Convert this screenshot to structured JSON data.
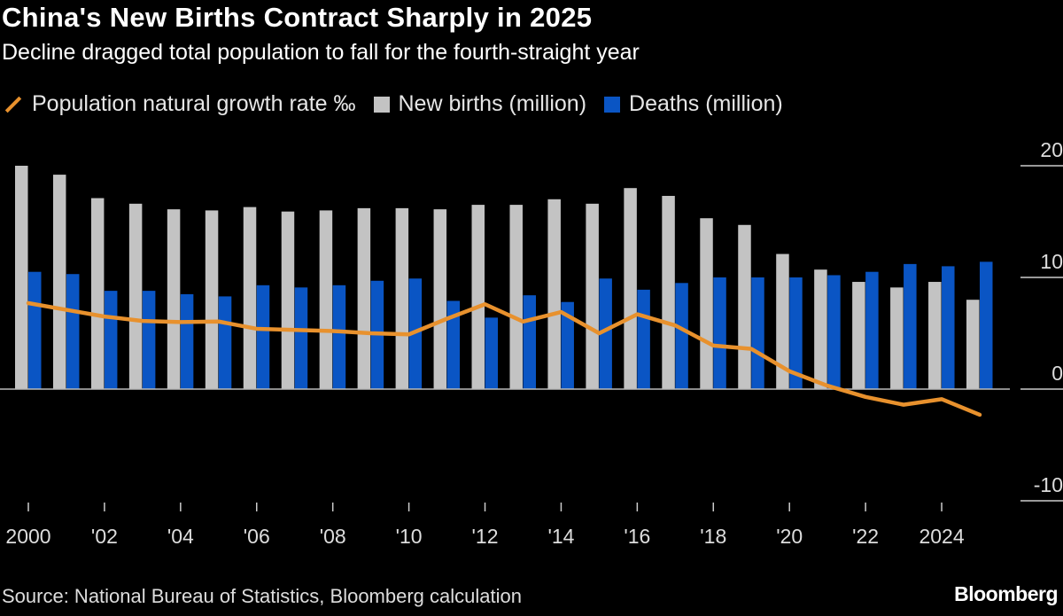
{
  "header": {
    "title": "China's New Births Contract Sharply in 2025",
    "subtitle": "Decline dragged total population to fall for the fourth-straight year"
  },
  "legend": [
    {
      "label": "Population natural growth rate ‰",
      "color": "#e8912d",
      "kind": "line"
    },
    {
      "label": "New births (million)",
      "color": "#c3c3c3",
      "kind": "bar"
    },
    {
      "label": "Deaths (million)",
      "color": "#0a55c4",
      "kind": "bar"
    }
  ],
  "footer": {
    "source": "Source: National Bureau of Statistics, Bloomberg calculation",
    "brand": "Bloomberg"
  },
  "chart_data": {
    "type": "bar",
    "x": [
      2000,
      2001,
      2002,
      2003,
      2004,
      2005,
      2006,
      2007,
      2008,
      2009,
      2010,
      2011,
      2012,
      2013,
      2014,
      2015,
      2016,
      2017,
      2018,
      2019,
      2020,
      2021,
      2022,
      2023,
      2024,
      2025
    ],
    "x_tick_labels": [
      "2000",
      "'02",
      "'04",
      "'06",
      "'08",
      "'10",
      "'12",
      "'14",
      "'16",
      "'18",
      "'20",
      "'22",
      "2024"
    ],
    "y_tick_labels": [
      "20",
      "10",
      "0",
      "-10"
    ],
    "y_ticks": [
      20,
      10,
      0,
      -10
    ],
    "ylim": [
      -10,
      20
    ],
    "y_axis_side": "right",
    "grid": false,
    "legend_position": "top-left",
    "series": [
      {
        "name": "New births (million)",
        "type": "bar",
        "color": "#c3c3c3",
        "values": [
          20.0,
          19.2,
          17.1,
          16.6,
          16.1,
          16.0,
          16.3,
          15.9,
          16.0,
          16.2,
          16.2,
          16.1,
          16.5,
          16.5,
          17.0,
          16.6,
          18.0,
          17.3,
          15.3,
          14.7,
          12.1,
          10.7,
          9.6,
          9.1,
          9.6,
          8.0
        ]
      },
      {
        "name": "Deaths (million)",
        "type": "bar",
        "color": "#0a55c4",
        "values": [
          10.5,
          10.3,
          8.8,
          8.8,
          8.5,
          8.3,
          9.3,
          9.1,
          9.3,
          9.7,
          9.9,
          7.9,
          6.4,
          8.4,
          7.8,
          9.9,
          8.9,
          9.5,
          10.0,
          10.0,
          10.0,
          10.2,
          10.5,
          11.2,
          11.0,
          11.4
        ]
      },
      {
        "name": "Population natural growth rate ‰",
        "type": "line",
        "color": "#e8912d",
        "values": [
          7.7,
          7.1,
          6.5,
          6.1,
          6.0,
          6.05,
          5.4,
          5.3,
          5.2,
          5.0,
          4.9,
          6.3,
          7.6,
          6.05,
          6.9,
          5.0,
          6.7,
          5.7,
          3.9,
          3.6,
          1.6,
          0.3,
          -0.7,
          -1.4,
          -0.9,
          -2.3
        ]
      }
    ]
  }
}
